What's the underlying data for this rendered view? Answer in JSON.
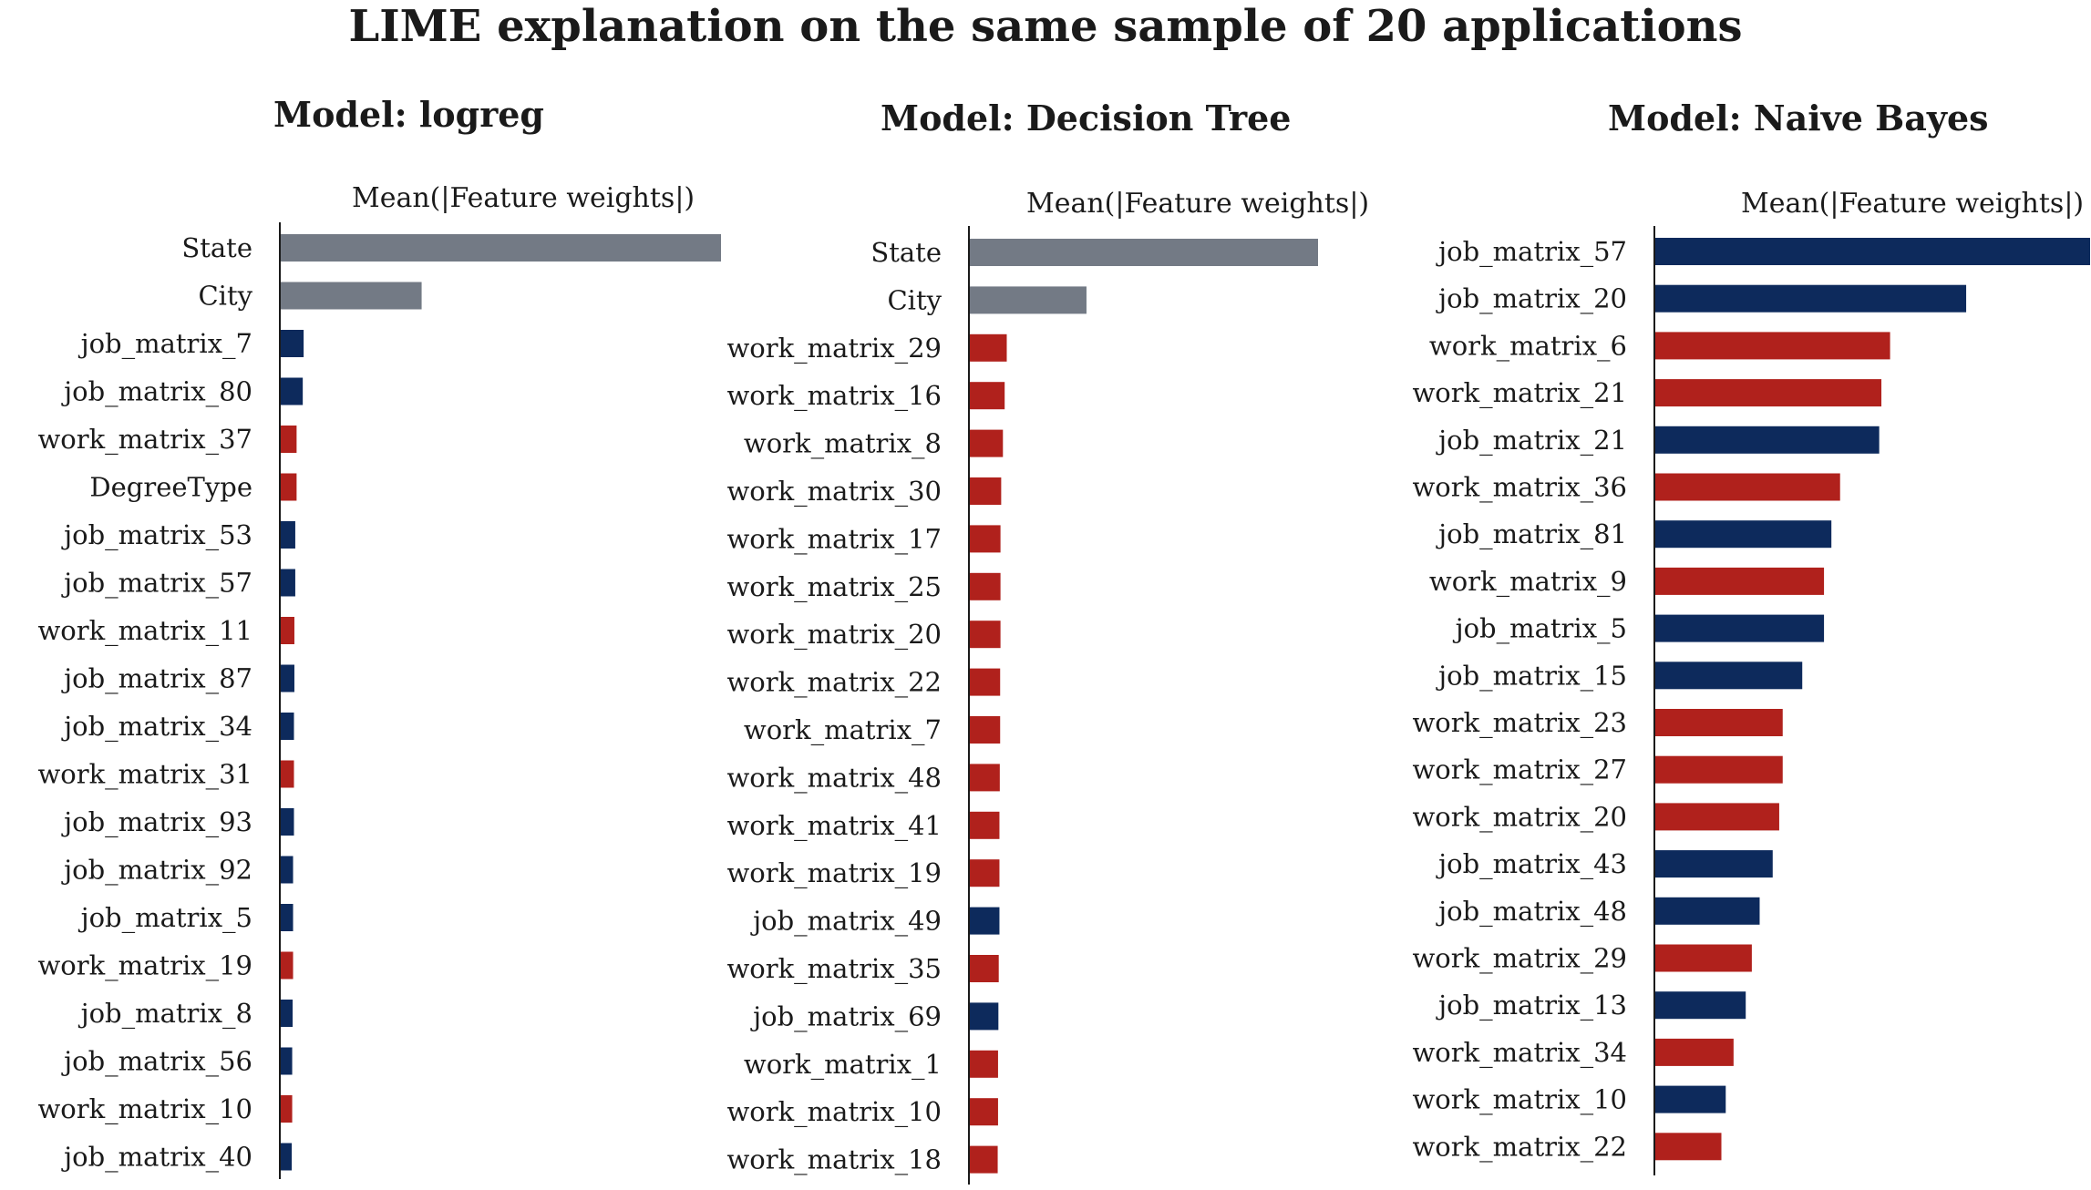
{
  "title": "LIME explanation on the same sample of 20 applications",
  "colors": {
    "grey": "#737a85",
    "red": "#b0211c",
    "blue": "#0d2a5c"
  },
  "chart_data": [
    {
      "type": "bar",
      "orientation": "horizontal",
      "title": "Model: logreg",
      "xlabel": "Mean(|Feature weights|)",
      "xlim": [
        0,
        1
      ],
      "grid": false,
      "categories": [
        "State",
        "City",
        "job_matrix_7",
        "job_matrix_80",
        "work_matrix_37",
        "DegreeType",
        "job_matrix_53",
        "job_matrix_57",
        "work_matrix_11",
        "job_matrix_87",
        "job_matrix_34",
        "work_matrix_31",
        "job_matrix_93",
        "job_matrix_92",
        "job_matrix_5",
        "work_matrix_19",
        "job_matrix_8",
        "job_matrix_56",
        "work_matrix_10",
        "job_matrix_40"
      ],
      "values": [
        1.0,
        0.32,
        0.052,
        0.05,
        0.036,
        0.036,
        0.033,
        0.033,
        0.031,
        0.031,
        0.03,
        0.03,
        0.03,
        0.028,
        0.028,
        0.028,
        0.027,
        0.026,
        0.026,
        0.025
      ],
      "bar_colors": [
        "grey",
        "grey",
        "blue",
        "blue",
        "red",
        "red",
        "blue",
        "blue",
        "red",
        "blue",
        "blue",
        "red",
        "blue",
        "blue",
        "blue",
        "red",
        "blue",
        "blue",
        "red",
        "blue"
      ]
    },
    {
      "type": "bar",
      "orientation": "horizontal",
      "title": "Model: Decision Tree",
      "xlabel": "Mean(|Feature weights|)",
      "xlim": [
        0,
        1
      ],
      "grid": false,
      "categories": [
        "State",
        "City",
        "work_matrix_29",
        "work_matrix_16",
        "work_matrix_8",
        "work_matrix_30",
        "work_matrix_17",
        "work_matrix_25",
        "work_matrix_20",
        "work_matrix_22",
        "work_matrix_7",
        "work_matrix_48",
        "work_matrix_41",
        "work_matrix_19",
        "job_matrix_49",
        "work_matrix_35",
        "job_matrix_69",
        "work_matrix_1",
        "work_matrix_10",
        "work_matrix_18"
      ],
      "values": [
        1.0,
        0.335,
        0.106,
        0.1,
        0.095,
        0.09,
        0.088,
        0.088,
        0.088,
        0.087,
        0.087,
        0.086,
        0.085,
        0.085,
        0.085,
        0.083,
        0.082,
        0.081,
        0.081,
        0.08
      ],
      "bar_colors": [
        "grey",
        "grey",
        "red",
        "red",
        "red",
        "red",
        "red",
        "red",
        "red",
        "red",
        "red",
        "red",
        "red",
        "red",
        "blue",
        "red",
        "blue",
        "red",
        "red",
        "red"
      ]
    },
    {
      "type": "bar",
      "orientation": "horizontal",
      "title": "Model: Naive Bayes",
      "xlabel": "Mean(|Feature weights|)",
      "xlim": [
        0,
        1
      ],
      "grid": false,
      "categories": [
        "job_matrix_57",
        "job_matrix_20",
        "work_matrix_6",
        "work_matrix_21",
        "job_matrix_21",
        "work_matrix_36",
        "job_matrix_81",
        "work_matrix_9",
        "job_matrix_5",
        "job_matrix_15",
        "work_matrix_23",
        "work_matrix_27",
        "work_matrix_20",
        "job_matrix_43",
        "job_matrix_48",
        "work_matrix_29",
        "job_matrix_13",
        "work_matrix_34",
        "work_matrix_10",
        "work_matrix_22"
      ],
      "values": [
        1.0,
        0.715,
        0.54,
        0.52,
        0.515,
        0.425,
        0.405,
        0.388,
        0.388,
        0.338,
        0.293,
        0.293,
        0.285,
        0.27,
        0.24,
        0.222,
        0.208,
        0.18,
        0.162,
        0.152
      ],
      "bar_colors": [
        "blue",
        "blue",
        "red",
        "red",
        "blue",
        "red",
        "blue",
        "red",
        "blue",
        "blue",
        "red",
        "red",
        "red",
        "blue",
        "blue",
        "red",
        "blue",
        "red",
        "blue",
        "red"
      ]
    }
  ]
}
